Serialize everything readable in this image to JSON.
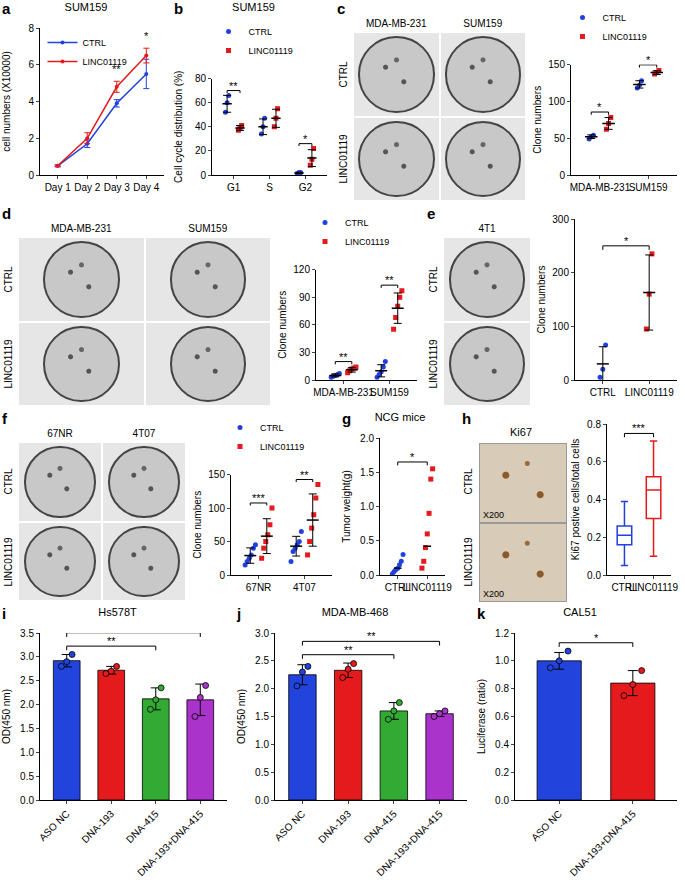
{
  "chart_data": [
    {
      "panel": "a",
      "type": "line",
      "title": "SUM159",
      "categories": [
        "Day 1",
        "Day 2",
        "Day 3",
        "Day 4"
      ],
      "y_label": "cell numbers (X10000)",
      "ylim": [
        0,
        8
      ],
      "yticks": [
        0,
        2,
        4,
        6,
        8
      ],
      "grid": false,
      "legend": "top left",
      "series": [
        {
          "name": "CTRL",
          "color": "#2040e0",
          "values": [
            0.5,
            1.7,
            3.9,
            5.5
          ],
          "errors": [
            0.05,
            0.2,
            0.2,
            0.8
          ]
        },
        {
          "name": "LINC01119",
          "color": "#e41a1c",
          "values": [
            0.5,
            2.0,
            4.8,
            6.5
          ],
          "errors": [
            0.05,
            0.3,
            0.3,
            0.4
          ]
        }
      ],
      "annotations": [
        {
          "text": "**",
          "category": "Day 3"
        },
        {
          "text": "*",
          "category": "Day 4"
        }
      ]
    },
    {
      "panel": "b",
      "type": "dot",
      "title": "SUM159",
      "categories": [
        "G1",
        "S",
        "G2"
      ],
      "y_label": "Cell cycle distribution (%)",
      "ylim": [
        0,
        80
      ],
      "yticks": [
        0,
        20,
        40,
        60,
        80
      ],
      "grid": false,
      "legend": "top",
      "series": [
        {
          "name": "CTRL",
          "color": "#2040e0",
          "points": [
            [
              52,
              60,
              66
            ],
            [
              34,
              40,
              47
            ],
            [
              1,
              2,
              2
            ]
          ],
          "values": [
            59,
            40,
            1.7
          ],
          "errors": [
            7,
            6.5,
            0.6
          ]
        },
        {
          "name": "LINC01119",
          "color": "#e41a1c",
          "points": [
            [
              37,
              39,
              41
            ],
            [
              40,
              47,
              55
            ],
            [
              8,
              13,
              22
            ]
          ],
          "values": [
            39,
            47,
            14
          ],
          "errors": [
            2,
            7.5,
            7
          ]
        }
      ],
      "annotations": [
        {
          "text": "**",
          "category": "G1"
        },
        {
          "text": "*",
          "category": "G2"
        }
      ]
    },
    {
      "type": "dot",
      "categories": [
        "MDA-MB-231",
        "SUM159"
      ],
      "y_label": "Clone numbers",
      "ylim": [
        0,
        150
      ],
      "yticks": [
        0,
        50,
        100,
        150
      ],
      "grid": false,
      "legend": "top",
      "series": [
        {
          "name": "CTRL",
          "color": "#2040e0",
          "points": [
            [
              49,
              52,
              54
            ],
            [
              118,
              122,
              128
            ]
          ],
          "values": [
            52,
            123
          ],
          "errors": [
            2.5,
            5
          ]
        },
        {
          "name": "LINC01119",
          "color": "#e41a1c",
          "points": [
            [
              62,
              70,
              78
            ],
            [
              137,
              139,
              142
            ]
          ],
          "values": [
            70,
            139
          ],
          "errors": [
            8,
            2.5
          ]
        }
      ],
      "annotations": [
        {
          "text": "*",
          "category": "MDA-MB-231"
        },
        {
          "text": "*",
          "category": "SUM159"
        }
      ]
    },
    {
      "type": "dot",
      "categories": [
        "MDA-MB-231",
        "SUM159"
      ],
      "y_label": "Clone numbers",
      "ylim": [
        0,
        120
      ],
      "yticks": [
        0,
        30,
        60,
        90,
        120
      ],
      "grid": false,
      "legend": "top",
      "series": [
        {
          "name": "CTRL",
          "color": "#2040e0",
          "points": [
            [
              3,
              4,
              5,
              6,
              7
            ],
            [
              3,
              6,
              9,
              14,
              20
            ]
          ],
          "values": [
            5,
            10
          ],
          "errors": [
            1.6,
            6.6
          ]
        },
        {
          "name": "LINC01119",
          "color": "#e41a1c",
          "points": [
            [
              8,
              10,
              12,
              13,
              14
            ],
            [
              55,
              68,
              80,
              90,
              97
            ]
          ],
          "values": [
            11,
            78
          ],
          "errors": [
            2.4,
            16.5
          ]
        }
      ],
      "annotations": [
        {
          "text": "**",
          "category": "MDA-MB-231"
        },
        {
          "text": "**",
          "category": "SUM159"
        }
      ]
    },
    {
      "type": "dot",
      "categories": [
        "CTRL",
        "LINC01119"
      ],
      "y_label": "Clone numbers",
      "ylim": [
        0,
        300
      ],
      "yticks": [
        0,
        100,
        200,
        300
      ],
      "grid": false,
      "colors": [
        "#2040e0",
        "#e41a1c"
      ],
      "points": [
        [
          5,
          20,
          65
        ],
        [
          95,
          160,
          235
        ]
      ],
      "values": [
        30,
        163
      ],
      "errors": [
        32,
        70
      ],
      "annotations": [
        {
          "text": "*",
          "from": "CTRL",
          "to": "LINC01119"
        }
      ]
    },
    {
      "type": "dot",
      "categories": [
        "67NR",
        "4T07"
      ],
      "y_label": "Clone numbers",
      "ylim": [
        0,
        150
      ],
      "yticks": [
        0,
        50,
        100,
        150
      ],
      "grid": false,
      "legend": "top",
      "series": [
        {
          "name": "CTRL",
          "color": "#2040e0",
          "points": [
            [
              15,
              20,
              25,
              30,
              40,
              45
            ],
            [
              20,
              35,
              40,
              45,
              50,
              65
            ]
          ],
          "values": [
            29,
            43
          ],
          "errors": [
            11.5,
            14.7
          ]
        },
        {
          "name": "LINC01119",
          "color": "#e41a1c",
          "points": [
            [
              25,
              40,
              50,
              60,
              75,
              100
            ],
            [
              30,
              50,
              70,
              90,
              115,
              135
            ]
          ],
          "values": [
            58,
            82
          ],
          "errors": [
            26,
            39
          ]
        }
      ],
      "annotations": [
        {
          "text": "***",
          "category": "67NR"
        },
        {
          "text": "**",
          "category": "4T07"
        }
      ]
    },
    {
      "panel": "g",
      "type": "dot",
      "title": "NCG mice",
      "categories": [
        "CTRL",
        "LINC01119"
      ],
      "y_label": "Tumor weight(g)",
      "ylim": [
        0,
        2
      ],
      "yticks": [
        {
          "value": 0,
          "label": "0.0"
        },
        0.5,
        {
          "value": 1,
          "label": "1.0"
        },
        1.5,
        {
          "value": 2,
          "label": "2.0"
        }
      ],
      "grid": false,
      "colors": [
        "#2040e0",
        "#e41a1c"
      ],
      "points": [
        [
          0.02,
          0.05,
          0.08,
          0.1,
          0.15,
          0.2,
          0.3
        ],
        [
          0.1,
          0.2,
          0.4,
          0.6,
          0.9,
          1.4,
          1.55
        ]
      ],
      "values": [
        0.1,
        0.42
      ],
      "annotations": [
        {
          "text": "*",
          "from": "CTRL",
          "to": "LINC01119"
        }
      ]
    },
    {
      "type": "box",
      "categories": [
        "CTRL",
        "LINC01119"
      ],
      "y_label": "Ki67 postive cells/total cells",
      "ylim": [
        0,
        0.8
      ],
      "yticks": [
        {
          "value": 0,
          "label": "0.0"
        },
        0.2,
        0.4,
        0.6,
        0.8
      ],
      "grid": false,
      "colors": [
        "#2040e0",
        "#e41a1c"
      ],
      "boxes": [
        {
          "min": 0.05,
          "q1": 0.16,
          "median": 0.21,
          "q3": 0.26,
          "max": 0.39
        },
        {
          "min": 0.1,
          "q1": 0.3,
          "median": 0.45,
          "q3": 0.52,
          "max": 0.71
        }
      ],
      "annotations": [
        {
          "text": "***",
          "from": "CTRL",
          "to": "LINC01119"
        }
      ]
    },
    {
      "panel": "i",
      "type": "bar",
      "title": "Hs578T",
      "categories": [
        "ASO NC",
        "DNA-193",
        "DNA-415",
        "DNA-193+DNA-415"
      ],
      "y_label": "OD(450 nm)",
      "ylim": [
        0,
        3.5
      ],
      "yticks": [
        {
          "value": 0,
          "label": "0.0"
        },
        0.5,
        {
          "value": 1,
          "label": "1.0"
        },
        1.5,
        {
          "value": 2,
          "label": "2.0"
        },
        2.5,
        {
          "value": 3,
          "label": "3.0"
        },
        3.5
      ],
      "grid": false,
      "colors": [
        "#2244dd",
        "#e41a1c",
        "#33aa33",
        "#aa33cc"
      ],
      "values": [
        2.92,
        2.72,
        2.12,
        2.1
      ],
      "errors": [
        0.13,
        0.08,
        0.23,
        0.33
      ],
      "points": [
        [
          2.8,
          2.9,
          3.05
        ],
        [
          2.65,
          2.7,
          2.8
        ],
        [
          1.9,
          2.1,
          2.35
        ],
        [
          1.75,
          2.15,
          2.4
        ]
      ],
      "annotations": [
        {
          "text": "**",
          "from": "ASO NC",
          "to": "DNA-415"
        },
        {
          "text": "**",
          "from": "ASO NC",
          "to": "DNA-193+DNA-415"
        }
      ]
    },
    {
      "panel": "j",
      "type": "bar",
      "title": "MDA-MB-468",
      "categories": [
        "ASO NC",
        "DNA-193",
        "DNA-415",
        "DNA-193+DNA-415"
      ],
      "y_label": "OD(450 nm)",
      "ylim": [
        0,
        3
      ],
      "yticks": [
        {
          "value": 0,
          "label": "0.0"
        },
        0.5,
        {
          "value": 1,
          "label": "1.0"
        },
        1.5,
        {
          "value": 2,
          "label": "2.0"
        },
        2.5,
        {
          "value": 3,
          "label": "3.0"
        }
      ],
      "grid": false,
      "colors": [
        "#2244dd",
        "#e41a1c",
        "#33aa33",
        "#aa33cc"
      ],
      "values": [
        2.25,
        2.33,
        1.6,
        1.55
      ],
      "errors": [
        0.18,
        0.13,
        0.15,
        0.05
      ],
      "points": [
        [
          2.05,
          2.3,
          2.4
        ],
        [
          2.2,
          2.35,
          2.45
        ],
        [
          1.45,
          1.6,
          1.75
        ],
        [
          1.5,
          1.55,
          1.6
        ]
      ],
      "annotations": [
        {
          "text": "**",
          "from": "ASO NC",
          "to": "DNA-415"
        },
        {
          "text": "**",
          "from": "ASO NC",
          "to": "DNA-193+DNA-415"
        }
      ]
    },
    {
      "panel": "k",
      "type": "bar",
      "title": "CAL51",
      "categories": [
        "ASO NC",
        "DNA-193+DNA-415"
      ],
      "y_label": "Luciferase (ratio)",
      "ylim": [
        0,
        1.2
      ],
      "yticks": [
        {
          "value": 0,
          "label": "0.0"
        },
        0.2,
        0.4,
        0.6,
        0.8,
        {
          "value": 1,
          "label": "1.0"
        },
        1.2
      ],
      "grid": false,
      "colors": [
        "#2244dd",
        "#e41a1c"
      ],
      "values": [
        1.0,
        0.84
      ],
      "errors": [
        0.06,
        0.09
      ],
      "points": [
        [
          0.95,
          1.0,
          1.07
        ],
        [
          0.75,
          0.83,
          0.93
        ]
      ],
      "annotations": [
        {
          "text": "*",
          "from": "ASO NC",
          "to": "DNA-193+DNA-415"
        }
      ]
    }
  ],
  "image_panels": [
    {
      "panel": "c",
      "columns": [
        "MDA-MB-231",
        "SUM159"
      ],
      "rows": [
        "CTRL",
        "LINC01119"
      ]
    },
    {
      "panel": "d",
      "columns": [
        "MDA-MB-231",
        "SUM159"
      ],
      "rows": [
        "CTRL",
        "LINC01119"
      ]
    },
    {
      "panel": "e",
      "columns": [
        "4T1"
      ],
      "rows": [
        "CTRL",
        "LINC01119"
      ]
    },
    {
      "panel": "f",
      "columns": [
        "67NR",
        "4T07"
      ],
      "rows": [
        "CTRL",
        "LINC01119"
      ]
    },
    {
      "panel": "h",
      "title": "Ki67",
      "rows": [
        "CTRL",
        "LINC01119"
      ],
      "magnification": "X200"
    }
  ]
}
